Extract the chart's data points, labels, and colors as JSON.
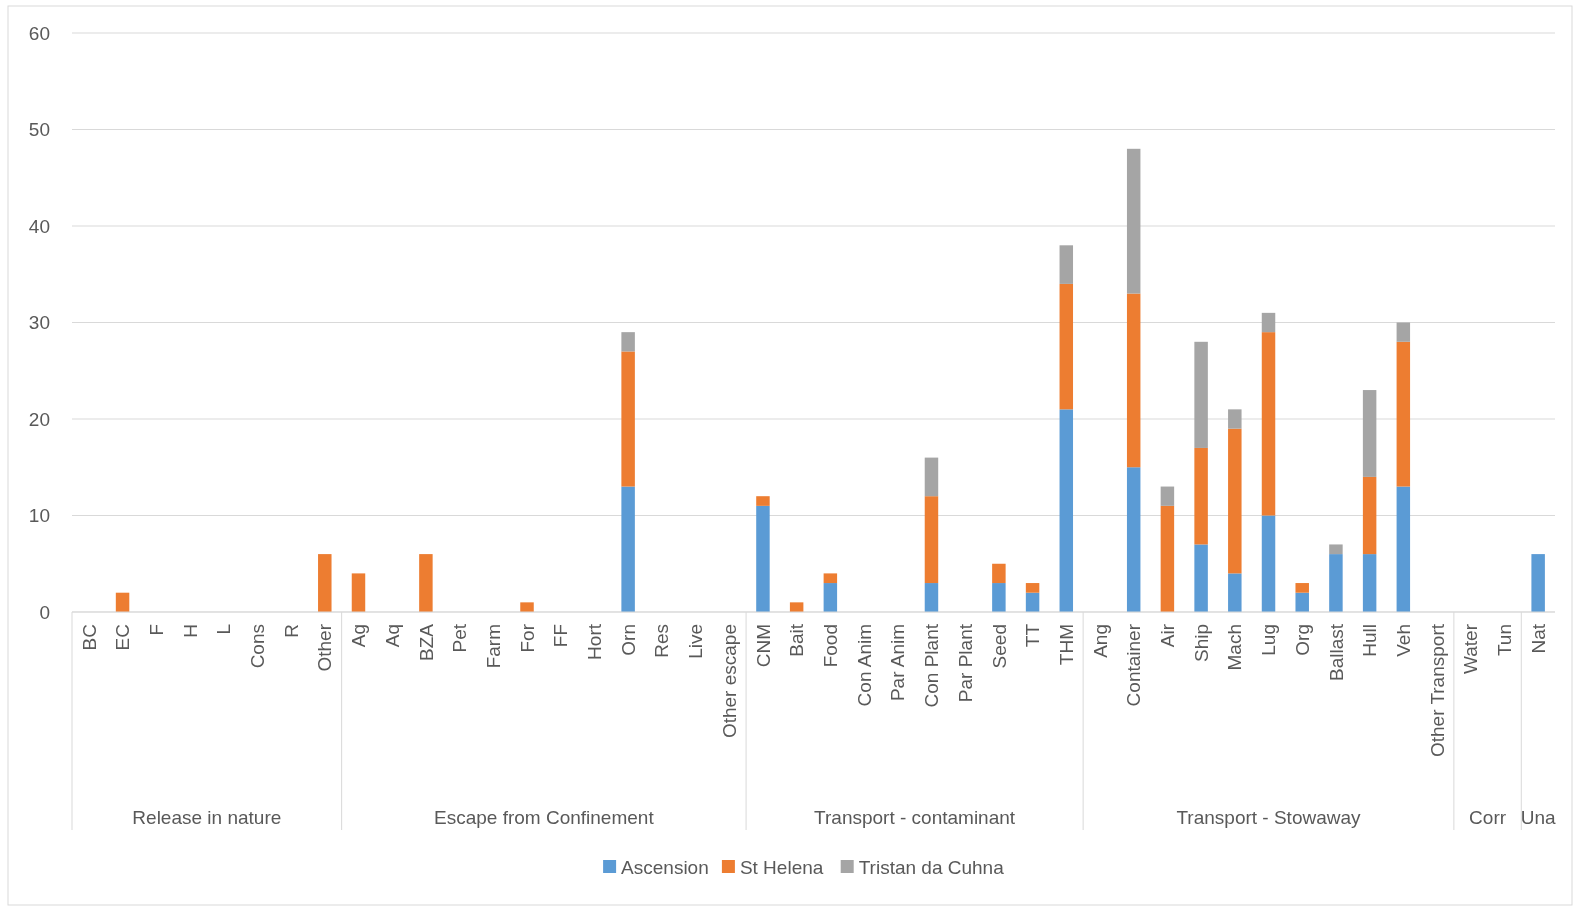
{
  "chart_data": {
    "type": "bar",
    "stacked": true,
    "categories": [
      "BC",
      "EC",
      "F",
      "H",
      "L",
      "Cons",
      "R",
      "Other",
      "Ag",
      "Aq",
      "BZA",
      "Pet",
      "Farm",
      "For",
      "FF",
      "Hort",
      "Orn",
      "Res",
      "Live",
      "Other escape",
      "CNM",
      "Bait",
      "Food",
      "Con Anim",
      "Par Anim",
      "Con Plant",
      "Par Plant",
      "Seed",
      "TT",
      "THM",
      "Ang",
      "Container",
      "Air",
      "Ship",
      "Mach",
      "Lug",
      "Org",
      "Ballast",
      "Hull",
      "Veh",
      "Other Transport",
      "Water",
      "Tun",
      "Nat"
    ],
    "series": [
      {
        "name": "Ascension",
        "color": "#5b9bd5",
        "values": [
          0,
          0,
          0,
          0,
          0,
          0,
          0,
          0,
          0,
          0,
          0,
          0,
          0,
          0,
          0,
          0,
          13,
          0,
          0,
          0,
          11,
          0,
          3,
          0,
          0,
          3,
          0,
          3,
          2,
          21,
          0,
          15,
          0,
          7,
          4,
          10,
          2,
          6,
          6,
          13,
          0,
          0,
          0,
          6
        ]
      },
      {
        "name": "St Helena",
        "color": "#ed7d31",
        "values": [
          0,
          2,
          0,
          0,
          0,
          0,
          0,
          6,
          4,
          0,
          6,
          0,
          0,
          1,
          0,
          0,
          14,
          0,
          0,
          0,
          1,
          1,
          1,
          0,
          0,
          9,
          0,
          2,
          1,
          13,
          0,
          18,
          11,
          10,
          15,
          19,
          1,
          0,
          8,
          15,
          0,
          0,
          0,
          0
        ]
      },
      {
        "name": "Tristan da Cuhna",
        "color": "#a5a5a5",
        "values": [
          0,
          0,
          0,
          0,
          0,
          0,
          0,
          0,
          0,
          0,
          0,
          0,
          0,
          0,
          0,
          0,
          2,
          0,
          0,
          0,
          0,
          0,
          0,
          0,
          0,
          4,
          0,
          0,
          0,
          4,
          0,
          15,
          2,
          11,
          2,
          2,
          0,
          1,
          9,
          2,
          0,
          0,
          0,
          0
        ]
      }
    ],
    "ylim": [
      0,
      60
    ],
    "yticks": [
      0,
      10,
      20,
      30,
      40,
      50,
      60
    ],
    "grid": "y",
    "legend": "bottom",
    "annotations": [
      "Release in nature",
      "Escape from Confinement",
      "Transport - contaminant",
      "Transport - Stowaway",
      "Corr",
      "Una"
    ]
  }
}
